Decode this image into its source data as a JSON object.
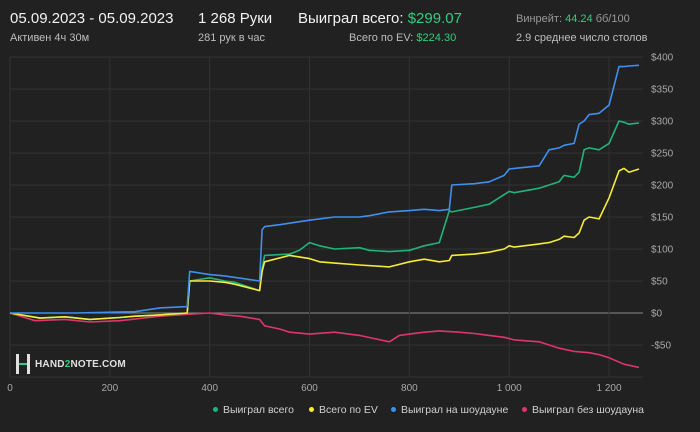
{
  "header": {
    "date_range": "05.09.2023 - 05.09.2023",
    "active": "Активен 4ч 30м",
    "hands": "1 268 Руки",
    "hands_per_hour": "281 рук в час",
    "won_total_label": "Выиграл всего:",
    "won_total_value": "$299.07",
    "ev_total_label": "Всего по EV:",
    "ev_total_value": "$224.30",
    "winrate_label": "Винрейт:",
    "winrate_value": "44.24",
    "winrate_unit": "бб/100",
    "avg_tables": "2.9 среднее число столов"
  },
  "logo": {
    "text_left": "HAND",
    "text_mid": "2",
    "text_right": "NOTE.COM"
  },
  "colors": {
    "background": "#212121",
    "grid": "#333333",
    "zero_line": "#8a8a8a",
    "won_total": "#1fb57a",
    "ev_total": "#f5ec36",
    "showdown": "#3f8ff0",
    "no_showdown": "#e0356c",
    "accent_green": "#2fcf7d"
  },
  "chart_data": {
    "type": "line",
    "xlim": [
      0,
      1268
    ],
    "ylim": [
      -100,
      400
    ],
    "x_ticks": [
      0,
      200,
      400,
      600,
      800,
      1000,
      1200
    ],
    "x_tick_labels": [
      "0",
      "200",
      "400",
      "600",
      "800",
      "1 000",
      "1 200"
    ],
    "y_ticks": [
      -100,
      -50,
      0,
      50,
      100,
      150,
      200,
      250,
      300,
      350,
      400
    ],
    "y_tick_labels": [
      "",
      "-$50",
      "$0",
      "$50",
      "$100",
      "$150",
      "$200",
      "$250",
      "$300",
      "$350",
      "$400"
    ],
    "grid": true,
    "legend_position": "bottom-right",
    "series": [
      {
        "name": "Выиграл всего",
        "color_key": "won_total",
        "x": [
          0,
          60,
          110,
          160,
          220,
          250,
          300,
          355,
          360,
          400,
          430,
          450,
          500,
          505,
          510,
          560,
          580,
          600,
          620,
          650,
          700,
          720,
          760,
          800,
          830,
          860,
          880,
          885,
          930,
          960,
          990,
          1000,
          1010,
          1060,
          1080,
          1100,
          1110,
          1130,
          1140,
          1150,
          1160,
          1180,
          1200,
          1220,
          1230,
          1240,
          1260
        ],
        "y": [
          0,
          -8,
          -6,
          -10,
          -7,
          -5,
          -3,
          0,
          50,
          55,
          50,
          48,
          35,
          70,
          90,
          92,
          98,
          110,
          105,
          100,
          102,
          98,
          96,
          98,
          105,
          110,
          160,
          158,
          165,
          170,
          185,
          190,
          188,
          195,
          200,
          205,
          215,
          212,
          220,
          255,
          258,
          255,
          265,
          300,
          298,
          295,
          297
        ]
      },
      {
        "name": "Всего по EV",
        "color_key": "ev_total",
        "x": [
          0,
          60,
          110,
          160,
          220,
          250,
          300,
          355,
          360,
          400,
          430,
          450,
          500,
          505,
          510,
          560,
          600,
          620,
          650,
          700,
          760,
          800,
          830,
          860,
          880,
          885,
          930,
          960,
          990,
          1000,
          1010,
          1060,
          1080,
          1100,
          1110,
          1130,
          1140,
          1150,
          1160,
          1180,
          1200,
          1220,
          1230,
          1240,
          1260
        ],
        "y": [
          0,
          -8,
          -6,
          -10,
          -7,
          -5,
          -3,
          0,
          50,
          50,
          48,
          45,
          35,
          65,
          80,
          90,
          85,
          80,
          78,
          75,
          72,
          80,
          84,
          80,
          82,
          90,
          92,
          95,
          100,
          105,
          103,
          108,
          110,
          115,
          120,
          118,
          125,
          145,
          150,
          147,
          180,
          222,
          226,
          220,
          225
        ]
      },
      {
        "name": "Выиграл на шоудауне",
        "color_key": "showdown",
        "x": [
          0,
          130,
          250,
          300,
          355,
          360,
          400,
          430,
          500,
          505,
          510,
          540,
          600,
          650,
          700,
          720,
          760,
          800,
          830,
          860,
          880,
          885,
          930,
          960,
          990,
          1000,
          1010,
          1060,
          1080,
          1100,
          1110,
          1130,
          1140,
          1150,
          1160,
          1180,
          1200,
          1220,
          1230,
          1240,
          1260
        ],
        "y": [
          0,
          0,
          2,
          8,
          10,
          65,
          60,
          58,
          50,
          130,
          135,
          138,
          145,
          150,
          150,
          152,
          158,
          160,
          162,
          160,
          162,
          200,
          202,
          205,
          215,
          225,
          226,
          230,
          255,
          258,
          262,
          265,
          295,
          300,
          310,
          312,
          325,
          385,
          385,
          386,
          387
        ]
      },
      {
        "name": "Выиграл без шоудауна",
        "color_key": "no_showdown",
        "x": [
          0,
          50,
          110,
          160,
          220,
          300,
          355,
          400,
          430,
          460,
          500,
          505,
          510,
          540,
          560,
          600,
          650,
          700,
          730,
          760,
          780,
          800,
          830,
          860,
          900,
          930,
          960,
          990,
          1000,
          1010,
          1060,
          1080,
          1100,
          1130,
          1160,
          1180,
          1200,
          1230,
          1260
        ],
        "y": [
          0,
          -12,
          -10,
          -14,
          -12,
          -5,
          -2,
          0,
          -3,
          -5,
          -10,
          -15,
          -20,
          -25,
          -30,
          -33,
          -30,
          -35,
          -40,
          -45,
          -35,
          -33,
          -30,
          -28,
          -30,
          -32,
          -35,
          -38,
          -40,
          -42,
          -45,
          -50,
          -55,
          -60,
          -62,
          -65,
          -70,
          -80,
          -85
        ]
      }
    ]
  },
  "legend": [
    {
      "label": "Выиграл всего",
      "color_key": "won_total"
    },
    {
      "label": "Всего по EV",
      "color_key": "ev_total"
    },
    {
      "label": "Выиграл на шоудауне",
      "color_key": "showdown"
    },
    {
      "label": "Выиграл без шоудауна",
      "color_key": "no_showdown"
    }
  ]
}
